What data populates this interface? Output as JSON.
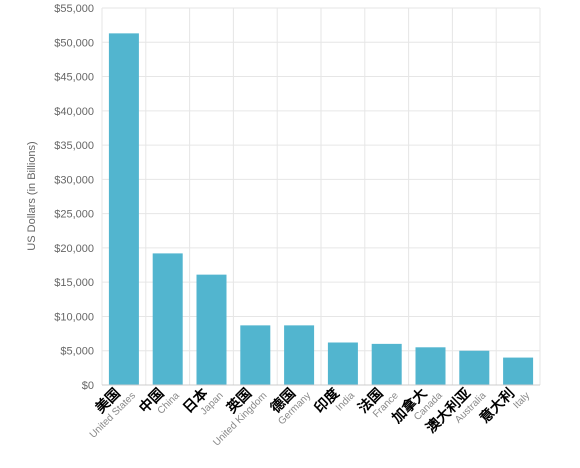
{
  "chart_data": {
    "type": "bar",
    "ylabel": "US Dollars (in Billions)",
    "ylim": [
      0,
      55000
    ],
    "yticks": [
      0,
      5000,
      10000,
      15000,
      20000,
      25000,
      30000,
      35000,
      40000,
      45000,
      50000,
      55000
    ],
    "ytick_labels": [
      "$0",
      "$5,000",
      "$10,000",
      "$15,000",
      "$20,000",
      "$25,000",
      "$30,000",
      "$35,000",
      "$40,000",
      "$45,000",
      "$50,000",
      "$55,000"
    ],
    "grid": true,
    "bar_color": "#52b5cf",
    "categories": [
      {
        "cn": "美国",
        "en": "United States"
      },
      {
        "cn": "中国",
        "en": "China"
      },
      {
        "cn": "日本",
        "en": "Japan"
      },
      {
        "cn": "英国",
        "en": "United Kingdom"
      },
      {
        "cn": "德国",
        "en": "Germany"
      },
      {
        "cn": "印度",
        "en": "India"
      },
      {
        "cn": "法国",
        "en": "France"
      },
      {
        "cn": "加拿大",
        "en": "Canada"
      },
      {
        "cn": "澳大利亚",
        "en": "Australia"
      },
      {
        "cn": "意大利",
        "en": "Italy"
      }
    ],
    "values": [
      51300,
      19200,
      16100,
      8700,
      8700,
      6200,
      6000,
      5500,
      5000,
      4000
    ]
  }
}
